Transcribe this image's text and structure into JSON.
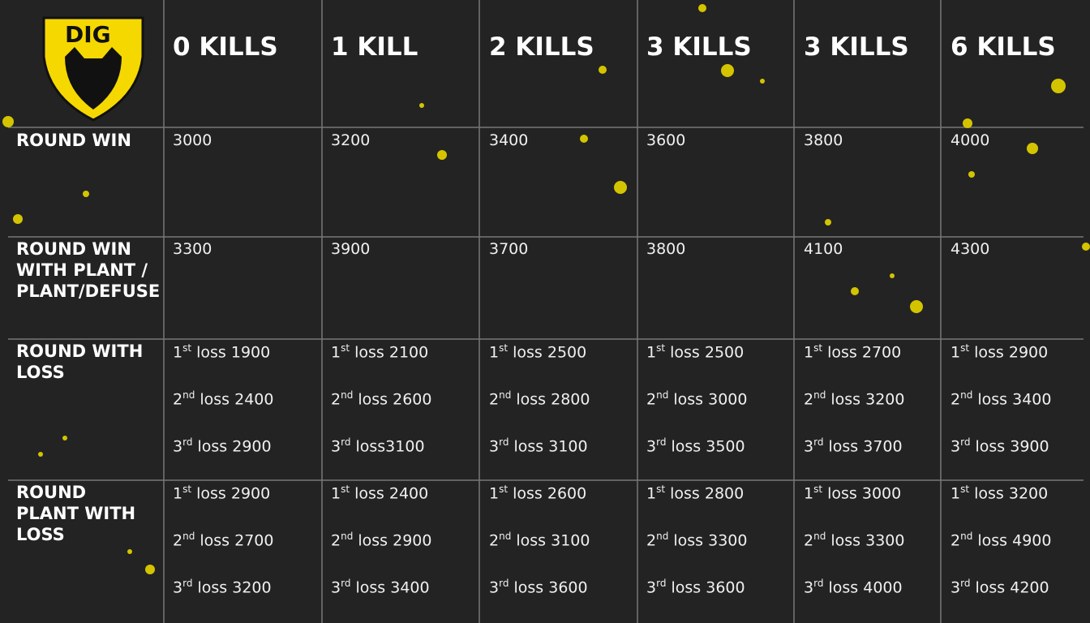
{
  "logo": {
    "text": "DIG"
  },
  "header": {
    "columns": [
      "0 KILLS",
      "1 KILL",
      "2 KILLS",
      "3 KILLS",
      "3 KILLS",
      "6 KILLS"
    ]
  },
  "table": {
    "rows": [
      {
        "label": [
          "ROUND WIN"
        ],
        "cells": [
          "3000",
          "3200",
          "3400",
          "3600",
          "3800",
          "4000"
        ]
      },
      {
        "label": [
          "ROUND WIN",
          "WITH PLANT /",
          "PLANT/DEFUSE"
        ],
        "cells": [
          "3300",
          "3900",
          "3700",
          "3800",
          "4100",
          "4300"
        ]
      },
      {
        "label": [
          "ROUND WITH",
          "LOSS"
        ],
        "cells": [
          [
            {
              "n": "1",
              "sup": "st",
              "text": "loss 1900"
            },
            {
              "n": "2",
              "sup": "nd",
              "text": "loss 2400"
            },
            {
              "n": "3",
              "sup": "rd",
              "text": "loss 2900"
            }
          ],
          [
            {
              "n": "1",
              "sup": "st",
              "text": "loss 2100"
            },
            {
              "n": "2",
              "sup": "nd",
              "text": "loss 2600"
            },
            {
              "n": "3",
              "sup": "rd",
              "text": "loss3100"
            }
          ],
          [
            {
              "n": "1",
              "sup": "st",
              "text": "loss 2500"
            },
            {
              "n": "2",
              "sup": "nd",
              "text": "loss 2800"
            },
            {
              "n": "3",
              "sup": "rd",
              "text": "loss 3100"
            }
          ],
          [
            {
              "n": "1",
              "sup": "st",
              "text": "loss 2500"
            },
            {
              "n": "2",
              "sup": "nd",
              "text": "loss 3000"
            },
            {
              "n": "3",
              "sup": "rd",
              "text": "loss 3500"
            }
          ],
          [
            {
              "n": "1",
              "sup": "st",
              "text": "loss 2700"
            },
            {
              "n": "2",
              "sup": "nd",
              "text": "loss 3200"
            },
            {
              "n": "3",
              "sup": "rd",
              "text": "loss 3700"
            }
          ],
          [
            {
              "n": "1",
              "sup": "st",
              "text": "loss 2900"
            },
            {
              "n": "2",
              "sup": "nd",
              "text": "loss 3400"
            },
            {
              "n": "3",
              "sup": "rd",
              "text": "loss 3900"
            }
          ]
        ]
      },
      {
        "label": [
          "ROUND",
          "PLANT WITH",
          "LOSS"
        ],
        "cells": [
          [
            {
              "n": "1",
              "sup": "st",
              "text": "loss 2900"
            },
            {
              "n": "2",
              "sup": "nd",
              "text": "loss 2700"
            },
            {
              "n": "3",
              "sup": "rd",
              "text": "loss 3200"
            }
          ],
          [
            {
              "n": "1",
              "sup": "st",
              "text": "loss 2400"
            },
            {
              "n": "2",
              "sup": "nd",
              "text": "loss 2900"
            },
            {
              "n": "3",
              "sup": "rd",
              "text": "loss 3400"
            }
          ],
          [
            {
              "n": "1",
              "sup": "st",
              "text": "loss 2600"
            },
            {
              "n": "2",
              "sup": "nd",
              "text": "loss 3100"
            },
            {
              "n": "3",
              "sup": "rd",
              "text": "loss 3600"
            }
          ],
          [
            {
              "n": "1",
              "sup": "st",
              "text": "loss 2800"
            },
            {
              "n": "2",
              "sup": "nd",
              "text": "loss 3300"
            },
            {
              "n": "3",
              "sup": "rd",
              "text": "loss 3600"
            }
          ],
          [
            {
              "n": "1",
              "sup": "st",
              "text": "loss 3000"
            },
            {
              "n": "2",
              "sup": "nd",
              "text": "loss 3300"
            },
            {
              "n": "3",
              "sup": "rd",
              "text": "loss 4000"
            }
          ],
          [
            {
              "n": "1",
              "sup": "st",
              "text": "loss 3200"
            },
            {
              "n": "2",
              "sup": "nd",
              "text": "loss 4900"
            },
            {
              "n": "3",
              "sup": "rd",
              "text": "loss 4200"
            }
          ]
        ]
      }
    ]
  }
}
